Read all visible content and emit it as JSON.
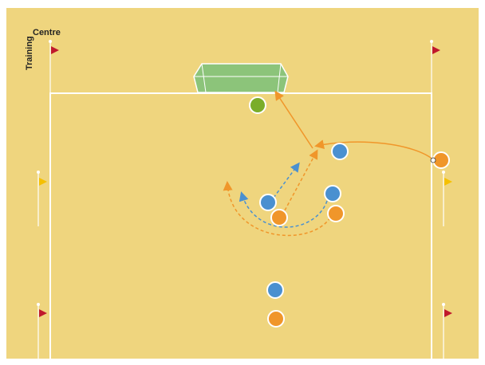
{
  "logo": {
    "line1": "Training",
    "line2": "Centre"
  }
}
